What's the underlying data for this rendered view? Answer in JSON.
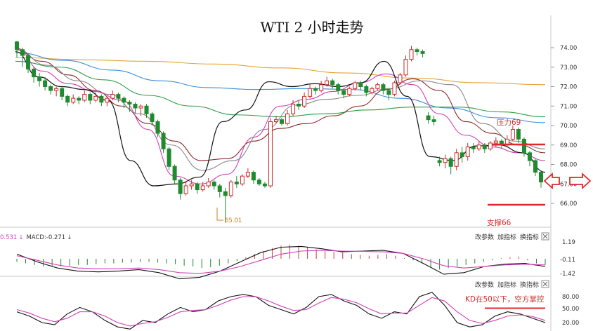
{
  "chart_data": {
    "type": "candlestick",
    "title": "WTI 2 小时走势",
    "y_ticks": [
      "74.00",
      "73.00",
      "72.00",
      "71.00",
      "70.00",
      "69.00",
      "68.00",
      "67.00",
      "66.00"
    ],
    "ylim": [
      65.0,
      74.9
    ],
    "low_annotation": "65.01",
    "resistance": {
      "label": "压力69",
      "value": 69.0
    },
    "support": {
      "label": "支撑66",
      "value": 66.0
    },
    "candles": [
      [
        74.3,
        73.9,
        74.35,
        73.5
      ],
      [
        73.9,
        73.6,
        74.0,
        73.0
      ],
      [
        73.6,
        72.9,
        73.7,
        72.7
      ],
      [
        72.9,
        72.5,
        73.0,
        72.2
      ],
      [
        72.5,
        72.3,
        72.7,
        72.0
      ],
      [
        72.3,
        72.0,
        72.5,
        71.8
      ],
      [
        72.0,
        71.8,
        72.1,
        71.6
      ],
      [
        71.8,
        71.9,
        72.0,
        71.5
      ],
      [
        71.9,
        71.5,
        72.0,
        71.3
      ],
      [
        71.5,
        71.2,
        71.6,
        71.0
      ],
      [
        71.2,
        71.4,
        71.6,
        71.1
      ],
      [
        71.4,
        71.3,
        71.5,
        71.1
      ],
      [
        71.3,
        71.6,
        71.8,
        71.2
      ],
      [
        71.6,
        71.3,
        71.7,
        71.1
      ],
      [
        71.3,
        71.5,
        71.7,
        71.2
      ],
      [
        71.5,
        71.2,
        71.6,
        71.0
      ],
      [
        71.2,
        71.4,
        71.5,
        71.0
      ],
      [
        71.4,
        71.6,
        71.8,
        71.3
      ],
      [
        71.6,
        71.4,
        71.7,
        71.2
      ],
      [
        71.4,
        71.2,
        71.5,
        70.9
      ],
      [
        71.2,
        71.1,
        71.3,
        70.7
      ],
      [
        71.1,
        70.9,
        71.2,
        70.6
      ],
      [
        70.9,
        71.0,
        71.1,
        70.5
      ],
      [
        71.0,
        70.6,
        71.1,
        70.4
      ],
      [
        70.6,
        70.2,
        70.7,
        70.0
      ],
      [
        70.2,
        69.6,
        70.3,
        69.4
      ],
      [
        69.6,
        68.8,
        69.7,
        68.6
      ],
      [
        68.8,
        67.9,
        68.9,
        67.7
      ],
      [
        67.9,
        67.2,
        68.0,
        67.0
      ],
      [
        67.2,
        66.5,
        67.3,
        66.2
      ],
      [
        66.5,
        66.9,
        67.1,
        66.4
      ],
      [
        66.9,
        67.0,
        67.2,
        66.7
      ],
      [
        67.0,
        66.7,
        67.1,
        66.5
      ],
      [
        66.7,
        66.9,
        67.1,
        66.6
      ],
      [
        66.9,
        67.1,
        67.3,
        66.8
      ],
      [
        67.1,
        66.9,
        67.2,
        66.7
      ],
      [
        66.9,
        66.6,
        67.0,
        66.3
      ],
      [
        66.6,
        66.4,
        66.8,
        65.01
      ],
      [
        66.4,
        67.1,
        67.2,
        66.3
      ],
      [
        67.1,
        67.0,
        67.4,
        66.8
      ],
      [
        67.0,
        67.4,
        67.5,
        66.9
      ],
      [
        67.4,
        67.6,
        67.8,
        67.3
      ],
      [
        67.6,
        67.2,
        67.7,
        67.0
      ],
      [
        67.2,
        67.0,
        67.3,
        66.9
      ],
      [
        67.0,
        66.9,
        67.1,
        66.8
      ],
      [
        66.9,
        70.2,
        70.4,
        66.8
      ],
      [
        70.2,
        70.3,
        70.5,
        70.1
      ],
      [
        70.3,
        70.1,
        70.4,
        70.0
      ],
      [
        70.1,
        70.6,
        70.8,
        70.0
      ],
      [
        70.6,
        71.1,
        71.3,
        70.5
      ],
      [
        71.1,
        71.0,
        71.3,
        70.8
      ],
      [
        71.0,
        71.5,
        71.7,
        70.9
      ],
      [
        71.5,
        71.9,
        72.1,
        71.4
      ],
      [
        71.9,
        71.8,
        72.0,
        71.6
      ],
      [
        71.8,
        72.1,
        72.3,
        71.7
      ],
      [
        72.1,
        72.3,
        72.5,
        72.0
      ],
      [
        72.3,
        72.1,
        72.4,
        71.9
      ],
      [
        72.1,
        71.8,
        72.2,
        71.6
      ],
      [
        71.8,
        71.6,
        71.9,
        71.4
      ],
      [
        71.6,
        71.9,
        72.0,
        71.5
      ],
      [
        71.9,
        72.2,
        72.3,
        71.8
      ],
      [
        72.2,
        72.0,
        72.3,
        71.8
      ],
      [
        72.0,
        71.7,
        72.1,
        71.5
      ],
      [
        71.7,
        71.9,
        72.0,
        71.6
      ],
      [
        71.9,
        72.1,
        72.2,
        71.8
      ],
      [
        72.1,
        71.8,
        72.2,
        71.6
      ],
      [
        71.8,
        71.6,
        71.9,
        71.3
      ],
      [
        71.6,
        72.2,
        72.3,
        71.5
      ],
      [
        72.2,
        72.6,
        72.7,
        72.1
      ],
      [
        72.6,
        73.4,
        73.6,
        72.5
      ],
      [
        73.4,
        73.9,
        74.1,
        73.3
      ],
      [
        73.9,
        73.8,
        74.0,
        73.6
      ],
      [
        73.8,
        73.7,
        73.9,
        73.5
      ],
      [
        70.5,
        70.3,
        70.7,
        70.1
      ],
      [
        70.3,
        70.2,
        70.5,
        70.0
      ],
      [
        68.2,
        68.1,
        68.4,
        67.9
      ],
      [
        68.1,
        68.3,
        68.5,
        67.8
      ],
      [
        68.3,
        67.9,
        68.4,
        67.5
      ],
      [
        67.9,
        68.6,
        68.8,
        67.7
      ],
      [
        68.6,
        68.4,
        68.9,
        68.1
      ],
      [
        68.4,
        68.9,
        69.1,
        68.2
      ],
      [
        68.9,
        68.8,
        69.1,
        68.6
      ],
      [
        68.8,
        69.0,
        69.2,
        68.7
      ],
      [
        69.0,
        68.8,
        69.1,
        68.6
      ],
      [
        68.8,
        69.1,
        69.2,
        68.7
      ],
      [
        69.1,
        69.2,
        69.4,
        68.9
      ],
      [
        69.2,
        69.0,
        69.3,
        68.8
      ],
      [
        69.0,
        69.3,
        69.5,
        68.9
      ],
      [
        69.3,
        69.8,
        70.0,
        69.2
      ],
      [
        69.8,
        69.3,
        69.9,
        69.1
      ],
      [
        69.3,
        68.6,
        69.4,
        68.4
      ],
      [
        68.6,
        68.2,
        68.7,
        67.9
      ],
      [
        68.2,
        67.6,
        68.3,
        67.4
      ],
      [
        67.6,
        67.1,
        67.7,
        66.8
      ]
    ],
    "moving_averages": [
      {
        "color": "#e4a435",
        "values": [
          73.5,
          73.38,
          73.3,
          73.16,
          72.96,
          72.7,
          72.44,
          72.2,
          72.1
        ]
      },
      {
        "color": "#3c8ed9",
        "values": [
          73.75,
          73.35,
          72.85,
          72.3,
          71.95,
          71.85,
          71.9,
          71.85,
          71.4,
          70.9,
          70.4,
          70.15
        ]
      },
      {
        "color": "#2e9e48",
        "values": [
          73.3,
          73.0,
          72.35,
          71.55,
          71.0,
          70.55,
          70.45,
          70.6,
          70.8,
          70.95,
          70.95,
          70.7,
          70.45
        ]
      },
      {
        "color": "#8b2a2a",
        "values": [
          73.9,
          73.3,
          72.6,
          71.8,
          71.0,
          70.1,
          69.2,
          68.2,
          68.3,
          69.2,
          69.85,
          70.1,
          70.5,
          71.0,
          71.85,
          72.4,
          71.8,
          70.2,
          69.6,
          69.0,
          68.6
        ]
      },
      {
        "color": "#8a8a8a",
        "values": [
          73.95,
          73.1,
          72.3,
          71.6,
          70.6,
          69.0,
          67.7,
          68.2,
          69.8,
          71.05,
          71.35,
          71.55,
          71.9,
          72.3,
          72.1,
          70.1,
          69.2,
          68.8
        ]
      },
      {
        "color": "#d23fb8",
        "values": [
          74.0,
          72.8,
          72.15,
          71.75,
          71.3,
          69.8,
          67.4,
          67.0,
          67.5,
          69.4,
          71.0,
          71.35,
          71.75,
          72.2,
          72.65,
          72.1,
          70.6,
          69.5,
          68.9,
          68.6,
          68.2
        ]
      },
      {
        "color": "#111111",
        "values": [
          73.8,
          72.5,
          72.0,
          71.85,
          71.3,
          68.2,
          66.9,
          67.0,
          67.35,
          70.2,
          70.8,
          72.25,
          72.0,
          72.15,
          72.0,
          72.2,
          73.3,
          71.5,
          68.4,
          68.2,
          68.95,
          69.0,
          68.6,
          67.6
        ]
      }
    ],
    "macd": {
      "label": "MACD:-0.271",
      "label_left": "0.531",
      "ticks": [
        "1.19",
        "-0.11",
        "-1.42"
      ],
      "controls": [
        "改参数",
        "加指标",
        "换指标"
      ],
      "hist": [
        -0.2,
        -0.3,
        -0.4,
        -0.5,
        -0.5,
        -0.5,
        -0.45,
        -0.4,
        -0.4,
        -0.35,
        -0.3,
        -0.3,
        -0.25,
        -0.25,
        -0.2,
        -0.2,
        -0.25,
        -0.3,
        -0.35,
        -0.45,
        -0.5,
        -0.6,
        -0.55,
        -0.45,
        -0.3,
        -0.15,
        0.1,
        0.3,
        0.5,
        0.7,
        0.85,
        0.9,
        0.85,
        0.75,
        0.6,
        0.5,
        0.45,
        0.4,
        0.3,
        0.25,
        0.2,
        0.25,
        0.3,
        0.2,
        0.05,
        -0.1,
        -0.3,
        -0.55,
        -0.7,
        -0.6,
        -0.5,
        -0.4,
        -0.3,
        -0.2,
        -0.1,
        0.05,
        0.1,
        0.15,
        -0.1,
        -0.3,
        -0.4
      ],
      "dif": [
        0.3,
        -0.2,
        -0.6,
        -0.8,
        -0.85,
        -0.8,
        -0.7,
        -0.9,
        -1.3,
        -1.2,
        -0.8,
        -0.2,
        0.4,
        0.75,
        0.8,
        0.65,
        0.45,
        0.5,
        0.55,
        0.35,
        -0.3,
        -1.0,
        -0.9,
        -0.5,
        -0.35,
        -0.3,
        -0.5
      ],
      "dea": [
        0.2,
        -0.1,
        -0.4,
        -0.6,
        -0.65,
        -0.65,
        -0.6,
        -0.7,
        -0.9,
        -0.95,
        -0.8,
        -0.5,
        -0.1,
        0.3,
        0.5,
        0.55,
        0.5,
        0.48,
        0.45,
        0.35,
        0.0,
        -0.45,
        -0.6,
        -0.5,
        -0.4,
        -0.35,
        -0.4
      ]
    },
    "kd": {
      "controls": [
        "改参数",
        "加指标",
        "换指标"
      ],
      "ticks": [
        "80.00",
        "50.00",
        "20.00"
      ],
      "annotation": "KD在50以下，空方掌控",
      "k": [
        45,
        35,
        20,
        15,
        40,
        55,
        45,
        25,
        10,
        5,
        25,
        20,
        40,
        55,
        45,
        50,
        70,
        80,
        85,
        80,
        60,
        50,
        40,
        55,
        80,
        85,
        70,
        60,
        40,
        30,
        45,
        40,
        80,
        90,
        60,
        20,
        10,
        15,
        35,
        45,
        40,
        30,
        20
      ],
      "d": [
        50,
        42,
        30,
        22,
        30,
        45,
        45,
        35,
        20,
        12,
        18,
        22,
        32,
        45,
        48,
        50,
        60,
        72,
        80,
        80,
        70,
        58,
        48,
        50,
        65,
        78,
        74,
        66,
        52,
        40,
        42,
        42,
        60,
        78,
        70,
        45,
        25,
        18,
        25,
        35,
        38,
        34,
        25
      ],
      "ref_level": 50
    }
  }
}
